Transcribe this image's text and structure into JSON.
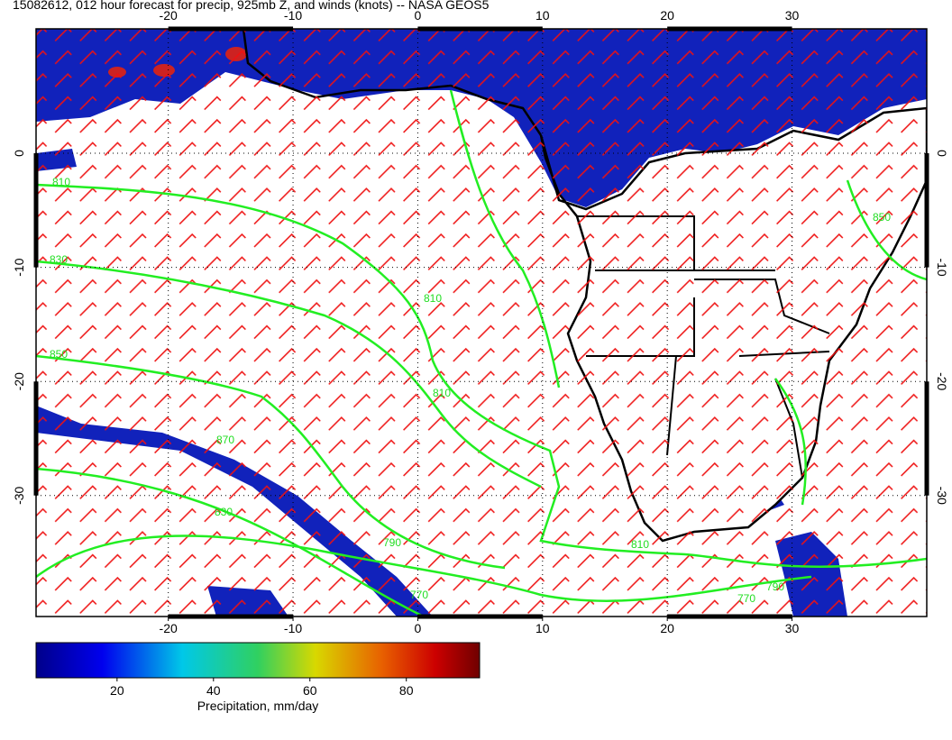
{
  "title": "15082612, 012 hour forecast for precip, 925mb Z, and winds (knots) -- NASA GEOS5",
  "map": {
    "xlim": [
      -30.6,
      40.8
    ],
    "ylim": [
      -40.6,
      10.9
    ],
    "xticks": [
      -20,
      -10,
      0,
      10,
      20,
      30
    ],
    "yticks": [
      0,
      -10,
      -20,
      -30
    ],
    "contour_labels": [
      "810",
      "830",
      "850",
      "810",
      "810",
      "870",
      "830",
      "790",
      "770",
      "810",
      "790",
      "770",
      "850"
    ]
  },
  "colorbar": {
    "label": "Precipitation, mm/day",
    "lim": [
      3.2,
      95.2
    ],
    "ticks": [
      20,
      40,
      60,
      80
    ]
  }
}
